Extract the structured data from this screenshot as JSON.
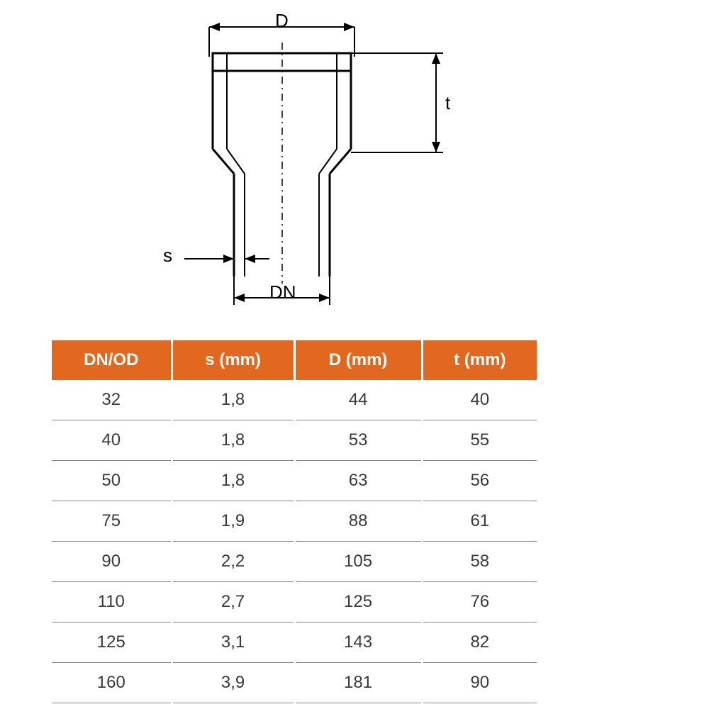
{
  "diagram": {
    "labels": {
      "D": "D",
      "t": "t",
      "s": "s",
      "DN": "DN"
    },
    "stroke_color": "#000000",
    "dash_pattern": "6,6",
    "line_width_main": 3,
    "line_width_dim": 2
  },
  "table": {
    "type": "table",
    "header_bg": "#e2671f",
    "header_text_color": "#ffffff",
    "cell_text_color": "#3a3a3a",
    "border_color": "#888888",
    "header_fontsize": 24,
    "cell_fontsize": 24,
    "columns": [
      "DN/OD",
      "s (mm)",
      "D (mm)",
      "t (mm)"
    ],
    "rows": [
      [
        "32",
        "1,8",
        "44",
        "40"
      ],
      [
        "40",
        "1,8",
        "53",
        "55"
      ],
      [
        "50",
        "1,8",
        "63",
        "56"
      ],
      [
        "75",
        "1,9",
        "88",
        "61"
      ],
      [
        "90",
        "2,2",
        "105",
        "58"
      ],
      [
        "110",
        "2,7",
        "125",
        "76"
      ],
      [
        "125",
        "3,1",
        "143",
        "82"
      ],
      [
        "160",
        "3,9",
        "181",
        "90"
      ]
    ]
  }
}
